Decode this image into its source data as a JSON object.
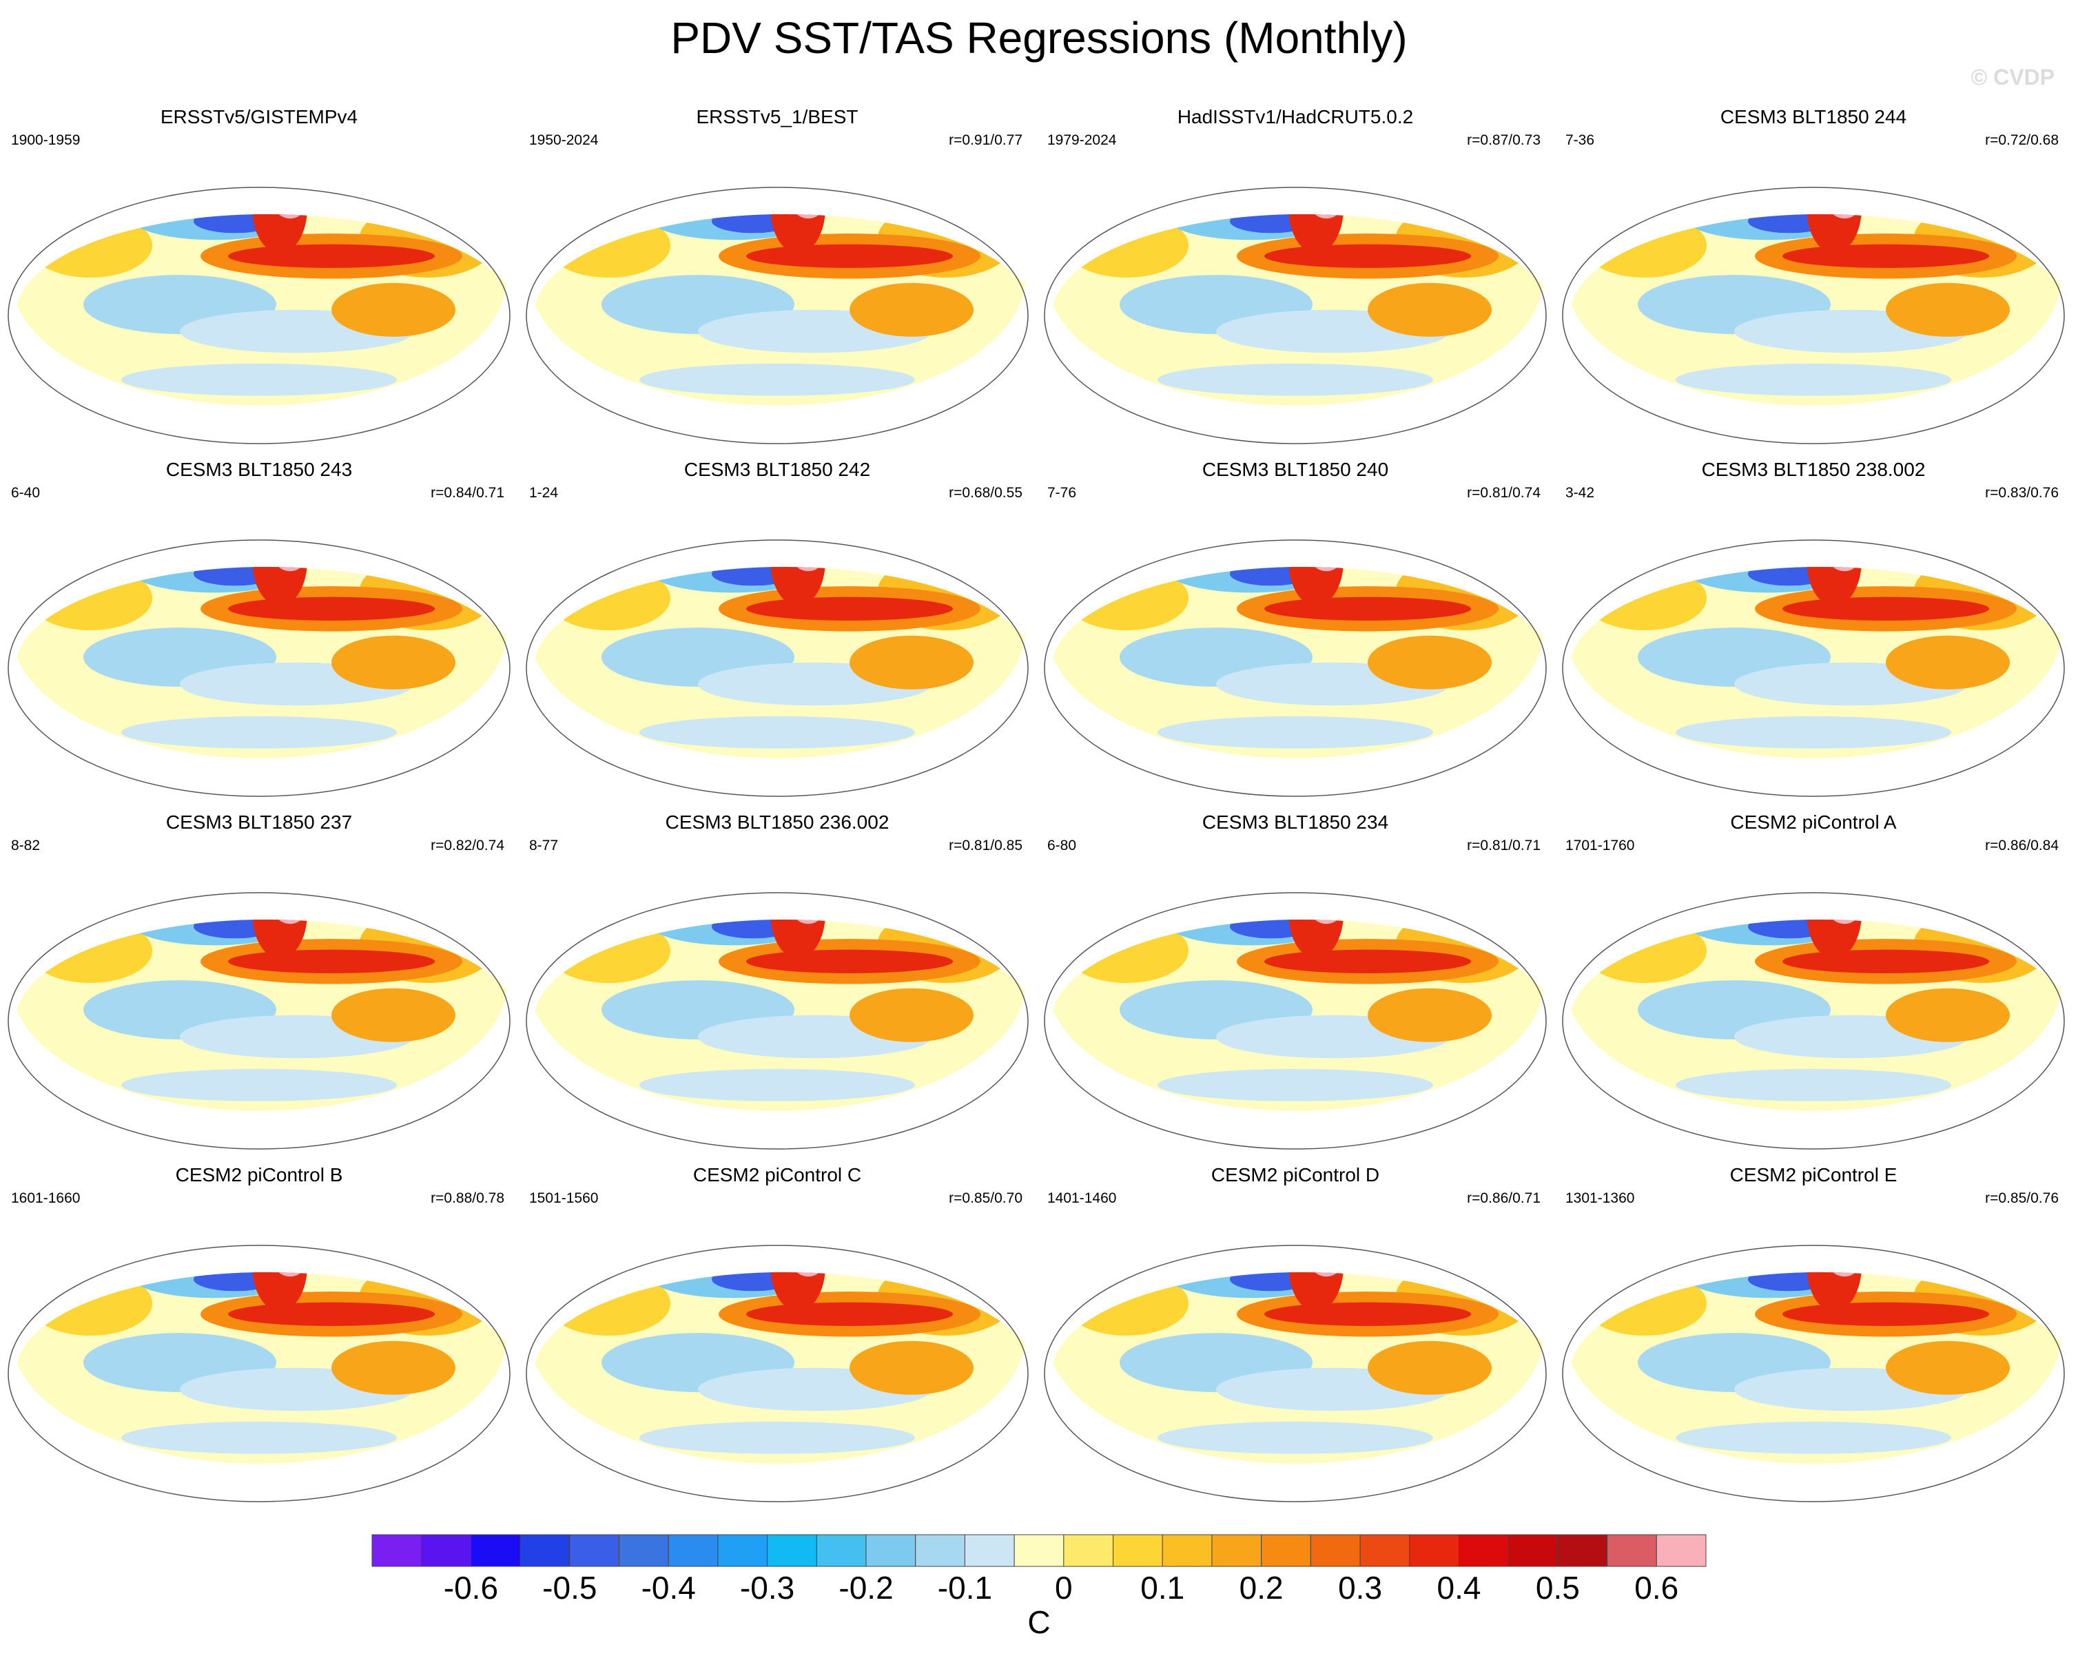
{
  "title": "PDV SST/TAS Regressions (Monthly)",
  "watermark": "© CVDP",
  "panels": [
    {
      "title": "ERSSTv5/GISTEMPv4",
      "years": "1900-1959",
      "corr": ""
    },
    {
      "title": "ERSSTv5_1/BEST",
      "years": "1950-2024",
      "corr": "r=0.91/0.77"
    },
    {
      "title": "HadISSTv1/HadCRUT5.0.2",
      "years": "1979-2024",
      "corr": "r=0.87/0.73"
    },
    {
      "title": "CESM3 BLT1850 244",
      "years": "7-36",
      "corr": "r=0.72/0.68"
    },
    {
      "title": "CESM3 BLT1850 243",
      "years": "6-40",
      "corr": "r=0.84/0.71"
    },
    {
      "title": "CESM3 BLT1850 242",
      "years": "1-24",
      "corr": "r=0.68/0.55"
    },
    {
      "title": "CESM3 BLT1850 240",
      "years": "7-76",
      "corr": "r=0.81/0.74"
    },
    {
      "title": "CESM3 BLT1850 238.002",
      "years": "3-42",
      "corr": "r=0.83/0.76"
    },
    {
      "title": "CESM3 BLT1850 237",
      "years": "8-82",
      "corr": "r=0.82/0.74"
    },
    {
      "title": "CESM3 BLT1850 236.002",
      "years": "8-77",
      "corr": "r=0.81/0.85"
    },
    {
      "title": "CESM3 BLT1850 234",
      "years": "6-80",
      "corr": "r=0.81/0.71"
    },
    {
      "title": "CESM2 piControl A",
      "years": "1701-1760",
      "corr": "r=0.86/0.84"
    },
    {
      "title": "CESM2 piControl B",
      "years": "1601-1660",
      "corr": "r=0.88/0.78"
    },
    {
      "title": "CESM2 piControl C",
      "years": "1501-1560",
      "corr": "r=0.85/0.70"
    },
    {
      "title": "CESM2 piControl D",
      "years": "1401-1460",
      "corr": "r=0.86/0.71"
    },
    {
      "title": "CESM2 piControl E",
      "years": "1301-1360",
      "corr": "r=0.85/0.76"
    }
  ],
  "colorbar": {
    "unit": "C",
    "labels": [
      "-0.6",
      "-0.5",
      "-0.4",
      "-0.3",
      "-0.2",
      "-0.1",
      "0",
      "0.1",
      "0.2",
      "0.3",
      "0.4",
      "0.5",
      "0.6"
    ],
    "colors": [
      "#7a1ff2",
      "#5a14f0",
      "#1a0cf5",
      "#2240e8",
      "#3a5ee8",
      "#3a74e0",
      "#2b8cf0",
      "#1fa0f5",
      "#11baf2",
      "#44c0f0",
      "#7ccaef",
      "#a6d8f2",
      "#cce6f5",
      "#fffcc0",
      "#fdea6a",
      "#fdd535",
      "#fbbf24",
      "#f9a51a",
      "#f78b12",
      "#f26a10",
      "#ec4a12",
      "#e8280e",
      "#dc0a0a",
      "#c8080a",
      "#b50e12",
      "#dc5c64",
      "#f9b0b8"
    ]
  }
}
